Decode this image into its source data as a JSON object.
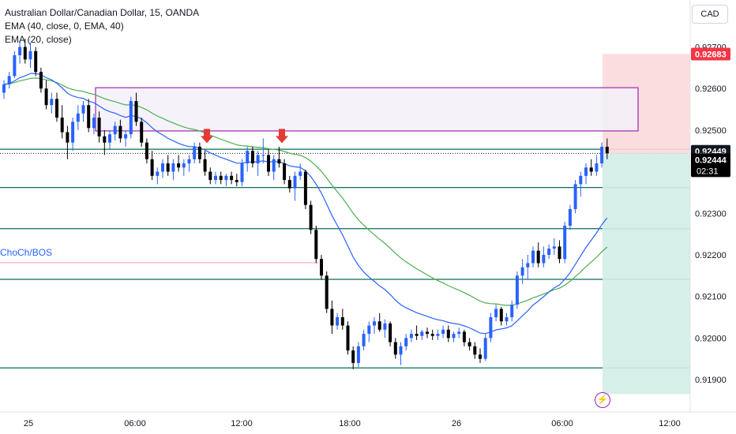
{
  "header": {
    "title": "Australian Dollar/Canadian Dollar, 15, OANDA",
    "indicator_1": "EMA (40, close, 0, EMA, 40)",
    "indicator_2": "EMA (20, close)"
  },
  "currency_button": "CAD",
  "alert_icon": "lightning-icon",
  "chart_data": {
    "type": "candlestick",
    "symbol": "AUD/CAD",
    "x_ticks": [
      "25",
      "06:00",
      "12:00",
      "18:00",
      "26",
      "06:00",
      "12:00"
    ],
    "y_ticks": [
      "0.92700",
      "0.92600",
      "0.92500",
      "0.92400",
      "0.92300",
      "0.92200",
      "0.92100",
      "0.92000",
      "0.91900"
    ],
    "ylim": [
      0.91845,
      0.92737
    ],
    "labels": {
      "target": "0.92683",
      "last": "0.92449",
      "current": "0.92444",
      "countdown": "02:31"
    },
    "horizontal_levels": [
      0.92454,
      0.92362,
      0.92263,
      0.92141,
      0.91928
    ],
    "choch_label": "ChoCh/BOS",
    "choch_level": 0.92181,
    "supply_zone": [
      0.92498,
      0.92602
    ],
    "position": {
      "entry": 0.92444,
      "target": 0.92683,
      "stop": 0.91865
    },
    "markers": [
      0.92465,
      0.92465
    ],
    "colors": {
      "up": "#2962ff",
      "down": "#000000",
      "ema20": "#2962ff",
      "ema40": "#4caf50",
      "level": "#0a6e5a",
      "zone_border": "#9c27b0",
      "zone_fill": "#f3f0f8",
      "profit": "#d3ede7",
      "loss": "#fbd9dc",
      "marker": "#e53935",
      "target_label": "#f23645"
    },
    "candles": [
      [
        0.9259,
        0.9262,
        0.92575,
        0.9261
      ],
      [
        0.9261,
        0.9264,
        0.926,
        0.9263
      ],
      [
        0.9263,
        0.9269,
        0.92625,
        0.9268
      ],
      [
        0.9268,
        0.92715,
        0.9266,
        0.927
      ],
      [
        0.927,
        0.9272,
        0.9266,
        0.9267
      ],
      [
        0.9267,
        0.9271,
        0.9265,
        0.9269
      ],
      [
        0.9269,
        0.927,
        0.9263,
        0.9264
      ],
      [
        0.9264,
        0.9265,
        0.9259,
        0.926
      ],
      [
        0.926,
        0.9262,
        0.9255,
        0.9256
      ],
      [
        0.9256,
        0.9259,
        0.9254,
        0.92575
      ],
      [
        0.92575,
        0.9259,
        0.9252,
        0.9253
      ],
      [
        0.9253,
        0.9256,
        0.9248,
        0.92495
      ],
      [
        0.92495,
        0.9251,
        0.9243,
        0.9247
      ],
      [
        0.9247,
        0.9253,
        0.9245,
        0.9252
      ],
      [
        0.9252,
        0.9256,
        0.925,
        0.9254
      ],
      [
        0.9254,
        0.9257,
        0.9252,
        0.9256
      ],
      [
        0.9256,
        0.92575,
        0.92495,
        0.92505
      ],
      [
        0.92505,
        0.9254,
        0.9249,
        0.9253
      ],
      [
        0.9253,
        0.92545,
        0.9247,
        0.92485
      ],
      [
        0.92485,
        0.925,
        0.9244,
        0.9247
      ],
      [
        0.9247,
        0.925,
        0.92455,
        0.9249
      ],
      [
        0.9249,
        0.9252,
        0.92475,
        0.9251
      ],
      [
        0.9251,
        0.92525,
        0.9247,
        0.9248
      ],
      [
        0.9248,
        0.925,
        0.9246,
        0.9249
      ],
      [
        0.9249,
        0.9258,
        0.9248,
        0.9257
      ],
      [
        0.9257,
        0.9259,
        0.9251,
        0.9252
      ],
      [
        0.9252,
        0.9253,
        0.9246,
        0.9247
      ],
      [
        0.9247,
        0.9248,
        0.9242,
        0.9243
      ],
      [
        0.9243,
        0.9245,
        0.9238,
        0.9239
      ],
      [
        0.9239,
        0.9241,
        0.9237,
        0.924
      ],
      [
        0.924,
        0.9243,
        0.92385,
        0.9242
      ],
      [
        0.9242,
        0.9244,
        0.9239,
        0.924
      ],
      [
        0.924,
        0.9243,
        0.9238,
        0.9242
      ],
      [
        0.9242,
        0.9244,
        0.924,
        0.9241
      ],
      [
        0.9241,
        0.9243,
        0.9239,
        0.9242
      ],
      [
        0.9242,
        0.9244,
        0.924,
        0.9243
      ],
      [
        0.9243,
        0.9247,
        0.9242,
        0.9246
      ],
      [
        0.9246,
        0.9247,
        0.9242,
        0.9243
      ],
      [
        0.9243,
        0.9245,
        0.9239,
        0.924
      ],
      [
        0.924,
        0.9241,
        0.9237,
        0.9238
      ],
      [
        0.9238,
        0.924,
        0.9237,
        0.9239
      ],
      [
        0.9239,
        0.924,
        0.9237,
        0.9238
      ],
      [
        0.9238,
        0.92395,
        0.92365,
        0.9239
      ],
      [
        0.9239,
        0.924,
        0.9237,
        0.9238
      ],
      [
        0.9238,
        0.92395,
        0.92365,
        0.92375
      ],
      [
        0.92375,
        0.9243,
        0.92365,
        0.9242
      ],
      [
        0.9242,
        0.9246,
        0.924,
        0.9245
      ],
      [
        0.9245,
        0.9246,
        0.9241,
        0.9242
      ],
      [
        0.9242,
        0.9245,
        0.9239,
        0.9244
      ],
      [
        0.9244,
        0.9248,
        0.9242,
        0.9244
      ],
      [
        0.9244,
        0.92455,
        0.9239,
        0.924
      ],
      [
        0.924,
        0.9244,
        0.9238,
        0.9243
      ],
      [
        0.9243,
        0.9246,
        0.9241,
        0.9242
      ],
      [
        0.9242,
        0.9243,
        0.9237,
        0.9238
      ],
      [
        0.9238,
        0.9239,
        0.9235,
        0.9236
      ],
      [
        0.9236,
        0.924,
        0.9233,
        0.9239
      ],
      [
        0.9239,
        0.9242,
        0.9238,
        0.924
      ],
      [
        0.924,
        0.92405,
        0.9231,
        0.9232
      ],
      [
        0.9232,
        0.9233,
        0.9225,
        0.9226
      ],
      [
        0.9226,
        0.9227,
        0.9218,
        0.9219
      ],
      [
        0.9219,
        0.922,
        0.9214,
        0.9215
      ],
      [
        0.9215,
        0.9216,
        0.9206,
        0.9207
      ],
      [
        0.9207,
        0.9209,
        0.9201,
        0.9203
      ],
      [
        0.9203,
        0.9206,
        0.9202,
        0.9205
      ],
      [
        0.9205,
        0.9207,
        0.9202,
        0.9203
      ],
      [
        0.9203,
        0.9204,
        0.9196,
        0.9197
      ],
      [
        0.9197,
        0.9198,
        0.91925,
        0.9194
      ],
      [
        0.9194,
        0.9199,
        0.9193,
        0.9198
      ],
      [
        0.9198,
        0.9202,
        0.9197,
        0.9201
      ],
      [
        0.9201,
        0.9204,
        0.9199,
        0.9203
      ],
      [
        0.9203,
        0.9205,
        0.9201,
        0.9204
      ],
      [
        0.9204,
        0.9206,
        0.92015,
        0.9202
      ],
      [
        0.9202,
        0.92045,
        0.92,
        0.92035
      ],
      [
        0.92035,
        0.9204,
        0.9198,
        0.9199
      ],
      [
        0.9199,
        0.92,
        0.9195,
        0.9196
      ],
      [
        0.9196,
        0.9199,
        0.91935,
        0.9198
      ],
      [
        0.9198,
        0.9201,
        0.9197,
        0.92
      ],
      [
        0.92,
        0.9202,
        0.9199,
        0.9201
      ],
      [
        0.9201,
        0.9203,
        0.91995,
        0.92005
      ],
      [
        0.92005,
        0.9202,
        0.91995,
        0.92015
      ],
      [
        0.92015,
        0.92025,
        0.92,
        0.9201
      ],
      [
        0.9201,
        0.9202,
        0.91995,
        0.92005
      ],
      [
        0.92005,
        0.9202,
        0.91995,
        0.9201
      ],
      [
        0.9201,
        0.9203,
        0.92,
        0.9202
      ],
      [
        0.9202,
        0.9203,
        0.9199,
        0.92
      ],
      [
        0.92,
        0.92015,
        0.9199,
        0.9201
      ],
      [
        0.9201,
        0.92025,
        0.92,
        0.92015
      ],
      [
        0.92015,
        0.9202,
        0.9198,
        0.9199
      ],
      [
        0.9199,
        0.92,
        0.9197,
        0.9198
      ],
      [
        0.9198,
        0.9199,
        0.9195,
        0.9196
      ],
      [
        0.9196,
        0.91975,
        0.9194,
        0.9195
      ],
      [
        0.9195,
        0.9201,
        0.91945,
        0.92
      ],
      [
        0.92,
        0.9206,
        0.9199,
        0.9205
      ],
      [
        0.9205,
        0.9208,
        0.9204,
        0.9207
      ],
      [
        0.9207,
        0.92075,
        0.9203,
        0.9204
      ],
      [
        0.9204,
        0.9206,
        0.9203,
        0.9205
      ],
      [
        0.9205,
        0.9209,
        0.9204,
        0.9208
      ],
      [
        0.9208,
        0.9216,
        0.9207,
        0.9215
      ],
      [
        0.9215,
        0.9219,
        0.9213,
        0.9217
      ],
      [
        0.9217,
        0.922,
        0.9214,
        0.9218
      ],
      [
        0.9218,
        0.9222,
        0.9217,
        0.9221
      ],
      [
        0.9221,
        0.9223,
        0.9217,
        0.9218
      ],
      [
        0.9218,
        0.9222,
        0.9217,
        0.922
      ],
      [
        0.922,
        0.92225,
        0.9219,
        0.92215
      ],
      [
        0.92215,
        0.9224,
        0.922,
        0.9222
      ],
      [
        0.9222,
        0.92235,
        0.9218,
        0.9219
      ],
      [
        0.9219,
        0.9228,
        0.9218,
        0.9227
      ],
      [
        0.9227,
        0.9232,
        0.9226,
        0.9231
      ],
      [
        0.9231,
        0.9238,
        0.923,
        0.9237
      ],
      [
        0.9237,
        0.924,
        0.9234,
        0.9239
      ],
      [
        0.9239,
        0.9242,
        0.9237,
        0.9241
      ],
      [
        0.9241,
        0.9243,
        0.9239,
        0.924
      ],
      [
        0.924,
        0.9244,
        0.9239,
        0.9242
      ],
      [
        0.9242,
        0.9247,
        0.9241,
        0.9246
      ],
      [
        0.9246,
        0.9248,
        0.9243,
        0.92444
      ]
    ]
  }
}
